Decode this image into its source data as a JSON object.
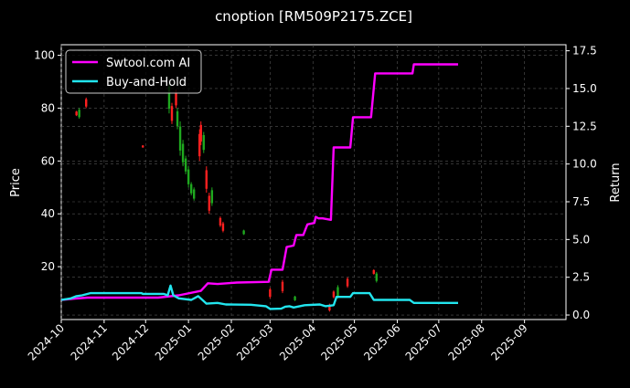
{
  "chart_data": {
    "type": "line",
    "title": "cnoption [RM509P2175.ZCE]",
    "ylabel": "Price",
    "y2label": "Return",
    "ylim": [
      0,
      104
    ],
    "y2lim": [
      -0.3,
      17.9
    ],
    "xlim": [
      "2024-10-01",
      "2025-10-01"
    ],
    "grid": true,
    "legend_position": "top-left",
    "x_ticks": [
      "2024-10",
      "2024-11",
      "2024-12",
      "2025-01",
      "2025-02",
      "2025-03",
      "2025-04",
      "2025-05",
      "2025-06",
      "2025-07",
      "2025-08",
      "2025-09"
    ],
    "y_ticks": [
      20,
      40,
      60,
      80,
      100
    ],
    "y2_ticks": [
      "0.0",
      "2.5",
      "5.0",
      "7.5",
      "10.0",
      "12.5",
      "15.0",
      "17.5"
    ],
    "colors": {
      "up": "#ff2020",
      "down": "#1fa81f",
      "strategy": "#ff00ff",
      "buyhold": "#22e5ee",
      "grid": "#555555"
    },
    "series": [
      {
        "name": "Swtool.com AI",
        "axis": "right",
        "points": [
          [
            "2024-10-01",
            1.0
          ],
          [
            "2024-10-10",
            1.08
          ],
          [
            "2024-10-20",
            1.15
          ],
          [
            "2024-11-15",
            1.15
          ],
          [
            "2024-12-10",
            1.15
          ],
          [
            "2024-12-25",
            1.3
          ],
          [
            "2025-01-10",
            1.6
          ],
          [
            "2025-01-15",
            2.1
          ],
          [
            "2025-01-22",
            2.05
          ],
          [
            "2025-02-05",
            2.15
          ],
          [
            "2025-02-28",
            2.2
          ],
          [
            "2025-03-02",
            3.0
          ],
          [
            "2025-03-10",
            3.0
          ],
          [
            "2025-03-13",
            4.5
          ],
          [
            "2025-03-18",
            4.6
          ],
          [
            "2025-03-20",
            5.3
          ],
          [
            "2025-03-25",
            5.3
          ],
          [
            "2025-03-28",
            6.0
          ],
          [
            "2025-04-02",
            6.1
          ],
          [
            "2025-04-03",
            6.5
          ],
          [
            "2025-04-05",
            6.4
          ],
          [
            "2025-04-08",
            6.4
          ],
          [
            "2025-04-14",
            6.3
          ],
          [
            "2025-04-16",
            11.1
          ],
          [
            "2025-04-28",
            11.1
          ],
          [
            "2025-04-30",
            13.1
          ],
          [
            "2025-05-13",
            13.1
          ],
          [
            "2025-05-16",
            16.0
          ],
          [
            "2025-06-12",
            16.0
          ],
          [
            "2025-06-13",
            16.6
          ],
          [
            "2025-07-15",
            16.6
          ]
        ]
      },
      {
        "name": "Buy-and-Hold",
        "axis": "right",
        "points": [
          [
            "2024-10-01",
            1.0
          ],
          [
            "2024-10-08",
            1.1
          ],
          [
            "2024-10-12",
            1.25
          ],
          [
            "2024-10-16",
            1.3
          ],
          [
            "2024-10-22",
            1.45
          ],
          [
            "2024-11-10",
            1.45
          ],
          [
            "2024-11-28",
            1.45
          ],
          [
            "2024-11-29",
            1.4
          ],
          [
            "2024-12-14",
            1.4
          ],
          [
            "2024-12-17",
            1.3
          ],
          [
            "2024-12-19",
            1.95
          ],
          [
            "2024-12-21",
            1.3
          ],
          [
            "2024-12-25",
            1.1
          ],
          [
            "2025-01-03",
            1.0
          ],
          [
            "2025-01-08",
            1.25
          ],
          [
            "2025-01-11",
            1.0
          ],
          [
            "2025-01-14",
            0.75
          ],
          [
            "2025-01-22",
            0.8
          ],
          [
            "2025-01-28",
            0.7
          ],
          [
            "2025-02-15",
            0.68
          ],
          [
            "2025-02-26",
            0.58
          ],
          [
            "2025-03-01",
            0.4
          ],
          [
            "2025-03-09",
            0.42
          ],
          [
            "2025-03-12",
            0.55
          ],
          [
            "2025-03-15",
            0.58
          ],
          [
            "2025-03-18",
            0.5
          ],
          [
            "2025-03-26",
            0.65
          ],
          [
            "2025-04-06",
            0.7
          ],
          [
            "2025-04-10",
            0.58
          ],
          [
            "2025-04-16",
            0.65
          ],
          [
            "2025-04-18",
            1.2
          ],
          [
            "2025-04-28",
            1.2
          ],
          [
            "2025-04-30",
            1.45
          ],
          [
            "2025-05-12",
            1.45
          ],
          [
            "2025-05-15",
            1.0
          ],
          [
            "2025-06-10",
            1.0
          ],
          [
            "2025-06-13",
            0.8
          ],
          [
            "2025-07-15",
            0.8
          ]
        ]
      }
    ],
    "candles": [
      [
        "2024-10-12",
        77,
        79
      ],
      [
        "2024-10-14",
        76,
        80
      ],
      [
        "2024-10-19",
        80,
        84
      ],
      [
        "2024-11-29",
        65,
        66
      ],
      [
        "2024-12-18",
        78,
        90
      ],
      [
        "2024-12-20",
        74,
        82
      ],
      [
        "2024-12-23",
        80,
        87
      ],
      [
        "2024-12-24",
        72,
        80
      ],
      [
        "2024-12-26",
        62,
        75
      ],
      [
        "2024-12-28",
        58,
        68
      ],
      [
        "2024-12-30",
        55,
        62
      ],
      [
        "2025-01-01",
        50,
        58
      ],
      [
        "2025-01-03",
        47,
        52
      ],
      [
        "2025-01-05",
        45,
        50
      ],
      [
        "2025-01-09",
        60,
        72
      ],
      [
        "2025-01-10",
        66,
        75
      ],
      [
        "2025-01-12",
        63,
        71
      ],
      [
        "2025-01-14",
        48,
        58
      ],
      [
        "2025-01-16",
        40,
        48
      ],
      [
        "2025-01-18",
        43,
        50
      ],
      [
        "2025-01-24",
        35,
        39
      ],
      [
        "2025-01-26",
        33,
        37
      ],
      [
        "2025-02-10",
        32,
        34
      ],
      [
        "2025-03-01",
        8,
        12
      ],
      [
        "2025-03-10",
        10,
        15
      ],
      [
        "2025-03-19",
        7,
        9
      ],
      [
        "2025-04-13",
        3,
        6
      ],
      [
        "2025-04-16",
        8,
        11
      ],
      [
        "2025-04-19",
        8,
        13
      ],
      [
        "2025-04-26",
        12,
        16
      ],
      [
        "2025-05-15",
        17,
        19
      ],
      [
        "2025-05-17",
        14,
        18
      ]
    ]
  }
}
